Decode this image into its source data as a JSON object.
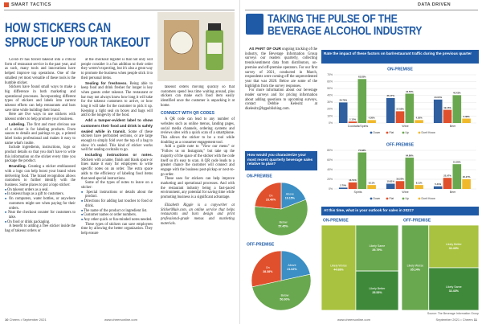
{
  "left": {
    "section": "SMART TACTICS",
    "title_lines": [
      "HOW STICKERS CAN",
      "SPRUCE UP YOUR TAKEOUT"
    ],
    "columns": [
      [
        "Covid-19 has forced takeout into a critical form of restaurant service in the past year, and as such, many tools and innovations have helped improve top operations. One of the smallest yet most versatile of these tools is the humble sticker.",
        "Stickers have found small ways to make a big difference in both marketing and operational processes. Incorporating different types of stickers and labels into current takeout efforts can help restaurants and bars save time while building their brand.",
        "Here are five ways to use stickers with takeout orders to help promote your business.",
        {
          "lead": "Labeling.",
          "text": "The first and most obvious use of a sticker is for labeling products. From sauces to details and pairings to go, a printed label looks professional and makes it easy to name what's inside."
        },
        "Include ingredients, instructions, logo or product details so that you don't have to write this information on the sticker every time you package the product.",
        {
          "lead": "Branding.",
          "text": "Creating a sticker emblazoned with a logo can help boost your brand when delivering food. The brand recognition allows customers to further identify with the business. Some places to put a logo sticker:"
        },
        {
          "bullet": "On takeout orders as a seal."
        },
        {
          "bullet": "In takeout bags as a gift to customers."
        },
        {
          "bullet": "On computers, water bottles, or anywhere customers might see when paying for their orders."
        },
        {
          "bullet": "Near the checkout counter for customers to take."
        },
        {
          "bullet": "On food or drink packaging."
        },
        "A benefit to adding a free sticker inside the bag of takeout orders or"
      ],
      [
        "at the checkout register is that not only will people consider it a fun addition to their order they weren't expecting, but it's also a great way to promote the business when people stick it to their personal items.",
        {
          "lead": "Sealing for freshness.",
          "text": "Being able to keep food and drink fresher for longer is key when guests order takeout. The restaurant or bar may not always know how long it will take for the takeout customers to arrive, or how long it will take for the customer to pick it up. Keeping a tight seal on boxes and bags will add to the longevity of the food."
        },
        {
          "lead": "Add a tamper-evident label to show customers their food and drink is safely sealed while in transit.",
          "text": "Some of these stickers have perforated sections, or are large enough to simply fold over the top of a bag to show it's sealed. This kind of sticker works well for sealing cocktails to go."
        },
        {
          "lead": "Including instructions or notes.",
          "text": "Stickers with a name, finish and blank space or lines make it easy for employees to write specific notes on an order. The extra space adds to the efficiency of labeling food items that need special instructions."
        },
        "Some of the types of notes to leave on a sticker:",
        {
          "bullet": "Special instructions or details about the product."
        },
        {
          "bullet": "Directions for adding last touches to food or drink."
        },
        {
          "bullet": "The name of the product or ingredient list."
        },
        {
          "bullet": "Customer names or order numbers."
        },
        {
          "bullet": "Any other quick or fun-minded notes needed."
        },
        "These types of stickers can save employees time by allowing the better organization. They help ensure"
      ],
      [
        "takeout orders moving quickly so that customers spend less time waiting around, plus stickers can make each food item easily identified once the customer is unpacking it at home.",
        {
          "heading": "CONNECT WITH QR CODES"
        },
        "A QR code can lead to any number of websites such as online menus, landing pages, social media channels, ordering systems and reviews sites with a quick scan of a smartphone. This allows the sticker to be a tool while doubling as a consumer engagement tool.",
        "Add a guide note to \"View our menu\" or \"Follow us on Instagram,\" but take up the majority of the space of the sticker with the code itself so it's easy to scan. A QR code leads to a greater chance the customer will connect and engage with the business post-pickup or next-to-go order.",
        "These uses for stickers can help improve marketing and operational processes. And with the restaurant industry being a fast-paced environment, any potential for saving time while promoting business is a significant advantage.",
        {
          "italic": "Elizabeth Riggle is a copywriter at StickerMule.com, an online service that helps restaurants and bars design and print professional-grade menus and marketing materials."
        }
      ]
    ],
    "footer_page": "10",
    "footer_mag": "Cheers • September 2021",
    "footer_url": "www.cheersonline.com"
  },
  "right": {
    "section": "DATA DRIVEN",
    "title_lines": [
      "TAKING THE PULSE OF THE",
      "BEVERAGE ALCOHOL INDUSTRY"
    ],
    "intro": [
      {
        "lead": "AS PART OF OUR",
        "text": "ongoing tracking of the industry, the Beverage Information Group surveys our readers quarterly, collecting trends/sentiment data from distributors, on-premise and off-premise operators. For our first survey of 2021, conducted in March, respondents were coming off the unprecedented year that was 2020. Below are some of the highlights from the survey responses."
      },
      "For more information about our beverage reader surveys and for pricing information about adding questions to upcoming surveys, contact Debbie Kelesitz at dkelesitz@bgpublishing.com."
    ],
    "chart_headers": [
      "Rate the impact of these factors on bar/restaurant traffic during the previous quarter",
      "How would you characterize your most recent quarterly beverage sales relative to plan?",
      "At this time, what is your outlook for sales in 2021?"
    ],
    "source": "Source: The Beverage Information Group",
    "footer_mag": "September 2021 • Cheers",
    "footer_page": "11",
    "footer_url": "www.cheersonline.com"
  },
  "chart_data": [
    {
      "type": "bar",
      "title": "ON-PREMISE",
      "categories": [
        "Cocktails/Spirits",
        "Wine",
        "Beer"
      ],
      "ylim": [
        0,
        70
      ],
      "yticks": [
        {
          "value": 0,
          "label": "0%"
        },
        {
          "value": 10,
          "label": "10%"
        },
        {
          "value": 20,
          "label": "20%"
        },
        {
          "value": 30,
          "label": "30%"
        },
        {
          "value": 40,
          "label": "40%"
        },
        {
          "value": 50,
          "label": "50%"
        },
        {
          "value": 60,
          "label": "60%"
        },
        {
          "value": 70,
          "label": "70%"
        }
      ],
      "grid": true,
      "series": [
        {
          "name": "Down",
          "color": "#2f5f9e",
          "values": [
            29.79,
            36.17,
            34.04
          ],
          "value_labels": [
            "29.79%",
            "36.17%",
            "34.04%"
          ]
        },
        {
          "name": "Flat",
          "color": "#e0502c",
          "values": [
            2.13,
            17.02,
            19.15
          ],
          "value_labels": [
            "2.13%",
            "17.02%",
            "19.15%"
          ]
        },
        {
          "name": "Up",
          "color": "#6aa84f",
          "values": [
            63.83,
            42.55,
            40.43
          ],
          "value_labels": [
            "63.83%",
            "42.55%",
            "40.43%"
          ]
        },
        {
          "name": "Don't Know",
          "color": "#f0b92c",
          "values": [
            4.26,
            4.26,
            6.38
          ],
          "value_labels": [
            "4.26%",
            "4.26%",
            "6.38%"
          ]
        }
      ]
    },
    {
      "type": "bar",
      "title": "OFF-PREMISE",
      "categories": [
        "Spirits",
        "Wine",
        "Beer"
      ],
      "ylim": [
        0,
        80
      ],
      "yticks": [
        {
          "value": 0,
          "label": "0%"
        },
        {
          "value": 20,
          "label": "20%"
        },
        {
          "value": 40,
          "label": "40%"
        },
        {
          "value": 60,
          "label": "60%"
        },
        {
          "value": 80,
          "label": "80%"
        }
      ],
      "grid": true,
      "series": [
        {
          "name": "Down",
          "color": "#2f5f9e",
          "values": [
            2.7,
            10.81,
            5.41
          ],
          "value_labels": [
            "2.70%",
            "10.81%",
            "5.41%"
          ]
        },
        {
          "name": "Flat",
          "color": "#e0502c",
          "values": [
            13.51,
            16.22,
            22.97
          ],
          "value_labels": [
            "13.51%",
            "16.22%",
            "22.97%"
          ]
        },
        {
          "name": "Up",
          "color": "#6aa84f",
          "values": [
            75.68,
            64.86,
            51.35
          ],
          "value_labels": [
            "75.68%",
            "64.86%",
            "51.35%"
          ]
        },
        {
          "name": "Don't Know",
          "color": "#f0b92c",
          "values": [
            8.11,
            8.11,
            20.27
          ],
          "value_labels": [
            "8.11%",
            "8.11%",
            "20.27%"
          ]
        }
      ]
    },
    {
      "type": "pie",
      "title": "ON-PREMISE",
      "categories": [
        "Above",
        "Below",
        "On"
      ],
      "values": [
        19.15,
        57.45,
        23.4
      ],
      "value_labels": [
        "19.15%",
        "57.45%",
        "23.40%"
      ],
      "colors": [
        "#3b8fc4",
        "#6aa84f",
        "#e0502c"
      ]
    },
    {
      "type": "pie",
      "title": "OFF-PREMISE",
      "categories": [
        "Above",
        "Below",
        "On"
      ],
      "values": [
        21.62,
        50,
        28.38
      ],
      "value_labels": [
        "21.62%",
        "50.00%",
        "28.38%"
      ],
      "colors": [
        "#3b8fc4",
        "#6aa84f",
        "#e0502c"
      ]
    },
    {
      "type": "treemap",
      "title": "ON-PREMISE",
      "categories": [
        "Likely Worse",
        "Likely Same",
        "Likely Better"
      ],
      "values": [
        44.68,
        29.79,
        25.53
      ],
      "value_labels": [
        "44.68%",
        "29.79%",
        "25.53%"
      ],
      "colors": [
        "#a9c23f",
        "#6aa84f",
        "#3f8a3a"
      ]
    },
    {
      "type": "treemap",
      "title": "OFF-PREMISE",
      "categories": [
        "Likely Worse",
        "Likely Better",
        "Likely Same"
      ],
      "values": [
        35.14,
        32.43,
        32.43
      ],
      "value_labels": [
        "35.14%",
        "32.43%",
        "32.43%"
      ],
      "colors": [
        "#6aa84f",
        "#a9c23f",
        "#3f8a3a"
      ]
    }
  ]
}
